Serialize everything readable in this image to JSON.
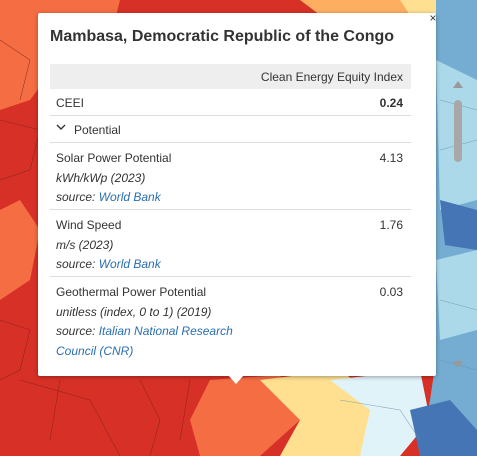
{
  "popup": {
    "title": "Mambasa, Democratic Republic of the Congo",
    "close_label": "×",
    "column_header": "Clean Energy Equity Index",
    "summary": {
      "label": "CEEI",
      "value": "0.24"
    },
    "section": {
      "label": "Potential"
    },
    "items": [
      {
        "name": "Solar Power Potential",
        "unit": "kWh/kWp (2023)",
        "source_prefix": "source:",
        "source_link": "World Bank",
        "source_link2": "",
        "value": "4.13"
      },
      {
        "name": "Wind Speed",
        "unit": "m/s (2023)",
        "source_prefix": "source:",
        "source_link": "World Bank",
        "source_link2": "",
        "value": "1.76"
      },
      {
        "name": "Geothermal Power Potential",
        "unit": "unitless (index, 0 to 1) (2019)",
        "source_prefix": "source:",
        "source_link": "Italian National Research",
        "source_link2": "Council (CNR)",
        "value": "0.03"
      }
    ]
  },
  "colors": {
    "map_red": "#d73027",
    "map_orange": "#f46d43",
    "map_yellow": "#fee090",
    "map_blue": "#74add1",
    "link": "#2a6fb0"
  }
}
